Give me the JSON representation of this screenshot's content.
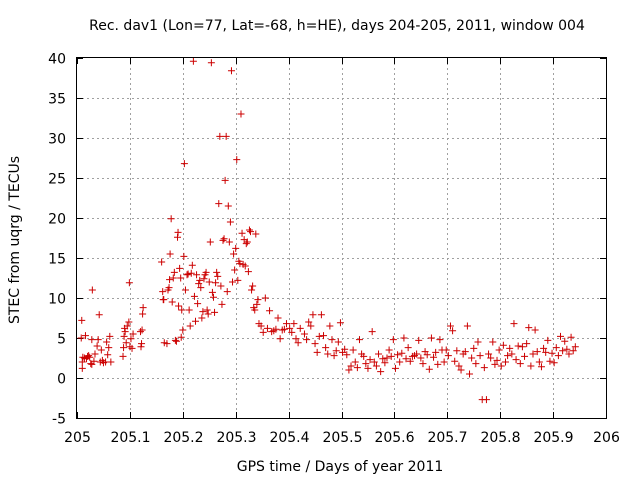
{
  "chart_data": {
    "type": "scatter",
    "title": "Rec. dav1 (Lon=77, Lat=-68, h=HE), days 204-205, 2011, window 004",
    "xlabel": "GPS time / Days of year 2011",
    "ylabel": "STEC from uqrg / TECUs",
    "xlim": [
      205,
      206
    ],
    "ylim": [
      -5,
      40
    ],
    "x_ticks": [
      "205",
      "205.1",
      "205.2",
      "205.3",
      "205.4",
      "205.5",
      "205.6",
      "205.7",
      "205.8",
      "205.9",
      "206"
    ],
    "y_ticks": [
      "-5",
      "0",
      "5",
      "10",
      "15",
      "20",
      "25",
      "30",
      "35",
      "40"
    ],
    "grid": true,
    "marker": "plus",
    "color": "#cc0000",
    "series": [
      {
        "points": [
          [
            205.008,
            5.0
          ],
          [
            205.009,
            7.2
          ],
          [
            205.01,
            1.2
          ],
          [
            205.01,
            2.0
          ],
          [
            205.011,
            2.6
          ],
          [
            205.014,
            2.5
          ],
          [
            205.016,
            5.3
          ],
          [
            205.018,
            2.4
          ],
          [
            205.02,
            2.7
          ],
          [
            205.022,
            2.8
          ],
          [
            205.024,
            2.6
          ],
          [
            205.026,
            1.8
          ],
          [
            205.028,
            1.7
          ],
          [
            205.028,
            4.8
          ],
          [
            205.029,
            11.0
          ],
          [
            205.032,
            2.1
          ],
          [
            205.034,
            3.0
          ],
          [
            205.038,
            4.0
          ],
          [
            205.04,
            4.8
          ],
          [
            205.042,
            7.9
          ],
          [
            205.044,
            2.0
          ],
          [
            205.046,
            3.5
          ],
          [
            205.048,
            2.2
          ],
          [
            205.05,
            1.9
          ],
          [
            205.054,
            2.0
          ],
          [
            205.056,
            4.5
          ],
          [
            205.058,
            2.9
          ],
          [
            205.06,
            3.8
          ],
          [
            205.062,
            5.2
          ],
          [
            205.064,
            2.0
          ],
          [
            205.087,
            2.7
          ],
          [
            205.088,
            3.8
          ],
          [
            205.089,
            5.2
          ],
          [
            205.09,
            6.2
          ],
          [
            205.091,
            5.8
          ],
          [
            205.093,
            4.4
          ],
          [
            205.095,
            6.5
          ],
          [
            205.098,
            7.0
          ],
          [
            205.099,
            11.9
          ],
          [
            205.1,
            3.9
          ],
          [
            205.102,
            4.9
          ],
          [
            205.104,
            3.7
          ],
          [
            205.106,
            5.5
          ],
          [
            205.12,
            5.8
          ],
          [
            205.121,
            3.9
          ],
          [
            205.122,
            4.3
          ],
          [
            205.123,
            6.0
          ],
          [
            205.124,
            8.0
          ],
          [
            205.125,
            8.8
          ],
          [
            205.16,
            14.5
          ],
          [
            205.162,
            10.8
          ],
          [
            205.163,
            9.8
          ],
          [
            205.164,
            9.8
          ],
          [
            205.165,
            4.4
          ],
          [
            205.17,
            4.3
          ],
          [
            205.172,
            11.0
          ],
          [
            205.174,
            11.3
          ],
          [
            205.175,
            12.3
          ],
          [
            205.176,
            15.5
          ],
          [
            205.178,
            19.9
          ],
          [
            205.18,
            9.5
          ],
          [
            205.182,
            12.5
          ],
          [
            205.184,
            13.2
          ],
          [
            205.186,
            4.7
          ],
          [
            205.188,
            4.6
          ],
          [
            205.19,
            17.6
          ],
          [
            205.191,
            18.2
          ],
          [
            205.192,
            9.0
          ],
          [
            205.194,
            13.7
          ],
          [
            205.196,
            12.5
          ],
          [
            205.197,
            5.1
          ],
          [
            205.198,
            8.5
          ],
          [
            205.2,
            6.0
          ],
          [
            205.202,
            15.2
          ],
          [
            205.203,
            26.8
          ],
          [
            205.205,
            11.0
          ],
          [
            205.208,
            12.9
          ],
          [
            205.21,
            13.0
          ],
          [
            205.212,
            8.5
          ],
          [
            205.214,
            6.5
          ],
          [
            205.216,
            13.1
          ],
          [
            205.218,
            14.1
          ],
          [
            205.22,
            39.6
          ],
          [
            205.222,
            10.2
          ],
          [
            205.224,
            7.1
          ],
          [
            205.226,
            12.9
          ],
          [
            205.228,
            9.3
          ],
          [
            205.23,
            11.8
          ],
          [
            205.232,
            12.2
          ],
          [
            205.234,
            11.3
          ],
          [
            205.236,
            7.5
          ],
          [
            205.238,
            8.3
          ],
          [
            205.24,
            12.4
          ],
          [
            205.242,
            12.9
          ],
          [
            205.244,
            13.2
          ],
          [
            205.246,
            8.5
          ],
          [
            205.248,
            8.0
          ],
          [
            205.25,
            12.0
          ],
          [
            205.252,
            17.0
          ],
          [
            205.254,
            39.4
          ],
          [
            205.256,
            10.7
          ],
          [
            205.258,
            10.1
          ],
          [
            205.26,
            8.2
          ],
          [
            205.262,
            11.9
          ],
          [
            205.264,
            13.2
          ],
          [
            205.266,
            12.7
          ],
          [
            205.268,
            21.8
          ],
          [
            205.27,
            30.2
          ],
          [
            205.272,
            11.5
          ],
          [
            205.274,
            9.2
          ],
          [
            205.276,
            17.2
          ],
          [
            205.278,
            17.4
          ],
          [
            205.28,
            24.7
          ],
          [
            205.282,
            30.2
          ],
          [
            205.284,
            10.8
          ],
          [
            205.286,
            21.5
          ],
          [
            205.288,
            17.0
          ],
          [
            205.29,
            19.5
          ],
          [
            205.292,
            38.4
          ],
          [
            205.294,
            12.0
          ],
          [
            205.296,
            15.5
          ],
          [
            205.298,
            13.5
          ],
          [
            205.3,
            16.2
          ],
          [
            205.302,
            27.3
          ],
          [
            205.304,
            12.2
          ],
          [
            205.306,
            14.6
          ],
          [
            205.308,
            14.3
          ],
          [
            205.31,
            33.0
          ],
          [
            205.312,
            18.1
          ],
          [
            205.314,
            14.2
          ],
          [
            205.316,
            17.3
          ],
          [
            205.318,
            14.0
          ],
          [
            205.32,
            16.8
          ],
          [
            205.322,
            17.0
          ],
          [
            205.324,
            13.3
          ],
          [
            205.326,
            18.5
          ],
          [
            205.328,
            18.3
          ],
          [
            205.33,
            11.0
          ],
          [
            205.332,
            11.5
          ],
          [
            205.334,
            8.8
          ],
          [
            205.336,
            8.5
          ],
          [
            205.338,
            18.0
          ],
          [
            205.34,
            9.2
          ],
          [
            205.342,
            9.8
          ],
          [
            205.344,
            6.8
          ],
          [
            205.348,
            6.5
          ],
          [
            205.352,
            5.7
          ],
          [
            205.356,
            10.0
          ],
          [
            205.36,
            6.2
          ],
          [
            205.364,
            8.4
          ],
          [
            205.368,
            5.8
          ],
          [
            205.372,
            5.9
          ],
          [
            205.376,
            6.1
          ],
          [
            205.38,
            7.5
          ],
          [
            205.384,
            4.9
          ],
          [
            205.388,
            6.0
          ],
          [
            205.392,
            6.1
          ],
          [
            205.396,
            6.8
          ],
          [
            205.402,
            6.2
          ],
          [
            205.406,
            5.7
          ],
          [
            205.41,
            6.8
          ],
          [
            205.414,
            4.9
          ],
          [
            205.418,
            4.4
          ],
          [
            205.422,
            6.2
          ],
          [
            205.43,
            5.5
          ],
          [
            205.434,
            4.8
          ],
          [
            205.438,
            7.0
          ],
          [
            205.442,
            6.5
          ],
          [
            205.446,
            7.9
          ],
          [
            205.45,
            4.3
          ],
          [
            205.454,
            3.2
          ],
          [
            205.458,
            5.2
          ],
          [
            205.462,
            7.9
          ],
          [
            205.466,
            5.3
          ],
          [
            205.47,
            3.8
          ],
          [
            205.474,
            3.0
          ],
          [
            205.478,
            6.5
          ],
          [
            205.482,
            4.8
          ],
          [
            205.486,
            2.8
          ],
          [
            205.49,
            3.4
          ],
          [
            205.494,
            4.5
          ],
          [
            205.498,
            6.9
          ],
          [
            205.502,
            3.2
          ],
          [
            205.506,
            3.6
          ],
          [
            205.51,
            2.9
          ],
          [
            205.514,
            1.0
          ],
          [
            205.518,
            1.5
          ],
          [
            205.522,
            3.5
          ],
          [
            205.526,
            2.0
          ],
          [
            205.53,
            1.3
          ],
          [
            205.534,
            4.8
          ],
          [
            205.538,
            3.0
          ],
          [
            205.542,
            2.7
          ],
          [
            205.546,
            1.8
          ],
          [
            205.55,
            1.2
          ],
          [
            205.554,
            2.3
          ],
          [
            205.558,
            5.8
          ],
          [
            205.562,
            2.0
          ],
          [
            205.566,
            1.5
          ],
          [
            205.57,
            3.0
          ],
          [
            205.574,
            0.8
          ],
          [
            205.578,
            2.4
          ],
          [
            205.582,
            1.9
          ],
          [
            205.586,
            2.5
          ],
          [
            205.59,
            3.5
          ],
          [
            205.594,
            2.7
          ],
          [
            205.598,
            4.8
          ],
          [
            205.602,
            1.2
          ],
          [
            205.606,
            2.9
          ],
          [
            205.61,
            2.0
          ],
          [
            205.614,
            3.1
          ],
          [
            205.618,
            5.0
          ],
          [
            205.622,
            2.4
          ],
          [
            205.626,
            3.8
          ],
          [
            205.63,
            2.1
          ],
          [
            205.634,
            2.7
          ],
          [
            205.638,
            2.8
          ],
          [
            205.642,
            3.0
          ],
          [
            205.646,
            4.7
          ],
          [
            205.65,
            2.5
          ],
          [
            205.654,
            1.8
          ],
          [
            205.658,
            3.3
          ],
          [
            205.662,
            2.9
          ],
          [
            205.666,
            1.1
          ],
          [
            205.67,
            5.0
          ],
          [
            205.674,
            2.6
          ],
          [
            205.678,
            3.2
          ],
          [
            205.682,
            1.7
          ],
          [
            205.686,
            4.8
          ],
          [
            205.69,
            3.5
          ],
          [
            205.694,
            2.0
          ],
          [
            205.698,
            3.5
          ],
          [
            205.702,
            2.8
          ],
          [
            205.706,
            6.5
          ],
          [
            205.71,
            5.9
          ],
          [
            205.714,
            2.1
          ],
          [
            205.718,
            3.4
          ],
          [
            205.722,
            1.5
          ],
          [
            205.726,
            1.0
          ],
          [
            205.73,
            3.0
          ],
          [
            205.734,
            3.3
          ],
          [
            205.738,
            6.5
          ],
          [
            205.742,
            0.5
          ],
          [
            205.746,
            2.5
          ],
          [
            205.75,
            3.7
          ],
          [
            205.754,
            1.8
          ],
          [
            205.758,
            4.5
          ],
          [
            205.762,
            2.8
          ],
          [
            205.766,
            -2.7
          ],
          [
            205.77,
            1.3
          ],
          [
            205.774,
            -2.7
          ],
          [
            205.778,
            3.0
          ],
          [
            205.782,
            2.5
          ],
          [
            205.786,
            4.5
          ],
          [
            205.79,
            1.7
          ],
          [
            205.794,
            2.2
          ],
          [
            205.798,
            3.5
          ],
          [
            205.802,
            1.5
          ],
          [
            205.806,
            4.1
          ],
          [
            205.81,
            2.0
          ],
          [
            205.814,
            2.8
          ],
          [
            205.818,
            3.7
          ],
          [
            205.822,
            3.0
          ],
          [
            205.826,
            6.8
          ],
          [
            205.83,
            2.3
          ],
          [
            205.834,
            4.0
          ],
          [
            205.838,
            1.8
          ],
          [
            205.842,
            3.9
          ],
          [
            205.846,
            2.7
          ],
          [
            205.85,
            4.3
          ],
          [
            205.854,
            6.3
          ],
          [
            205.858,
            1.5
          ],
          [
            205.862,
            3.0
          ],
          [
            205.866,
            6.0
          ],
          [
            205.87,
            3.3
          ],
          [
            205.874,
            2.0
          ],
          [
            205.878,
            1.4
          ],
          [
            205.882,
            3.7
          ],
          [
            205.886,
            3.2
          ],
          [
            205.89,
            4.7
          ],
          [
            205.894,
            2.1
          ],
          [
            205.898,
            3.1
          ],
          [
            205.902,
            1.9
          ],
          [
            205.906,
            3.8
          ],
          [
            205.91,
            2.8
          ],
          [
            205.914,
            5.2
          ],
          [
            205.918,
            3.4
          ],
          [
            205.922,
            4.6
          ],
          [
            205.926,
            3.6
          ],
          [
            205.93,
            3.0
          ],
          [
            205.934,
            5.1
          ],
          [
            205.938,
            3.4
          ],
          [
            205.942,
            3.9
          ]
        ]
      }
    ]
  }
}
